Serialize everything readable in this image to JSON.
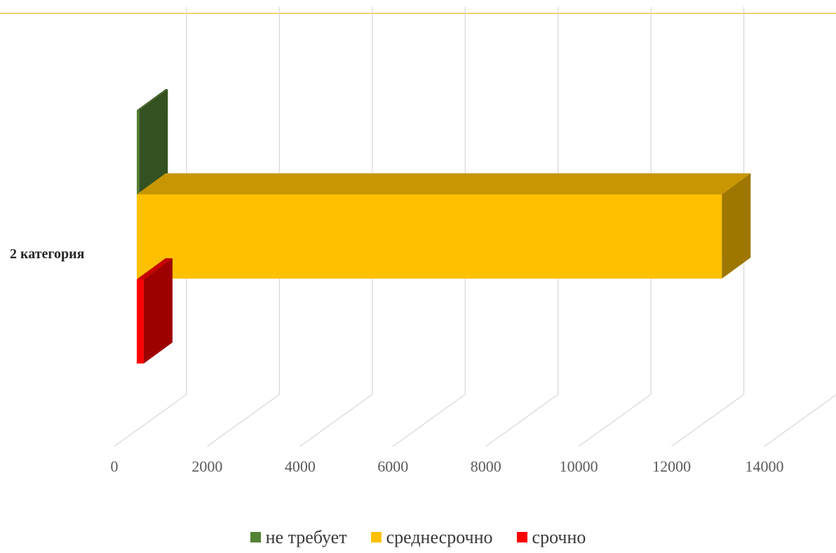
{
  "chart_data": {
    "type": "bar",
    "orientation": "horizontal",
    "three_d": true,
    "categories": [
      "2 категория"
    ],
    "series": [
      {
        "name": "не требует",
        "values": [
          50
        ],
        "color": "#548235"
      },
      {
        "name": "среднесрочно",
        "values": [
          12600
        ],
        "color": "#FFC000"
      },
      {
        "name": "срочно",
        "values": [
          150
        ],
        "color": "#FF0000"
      }
    ],
    "xlim": [
      0,
      14000
    ],
    "xticks": [
      "0",
      "2000",
      "4000",
      "6000",
      "8000",
      "10000",
      "12000",
      "14000"
    ],
    "grid": true,
    "legend_position": "bottom",
    "title": "",
    "xlabel": "",
    "ylabel": ""
  }
}
